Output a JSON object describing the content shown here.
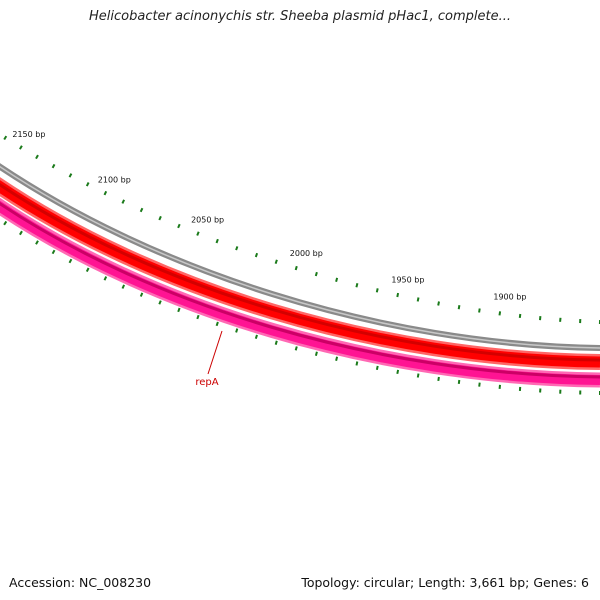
{
  "title": "Helicobacter acinonychis str. Sheeba plasmid pHac1, complete...",
  "footer": {
    "accession": "Accession: NC_008230",
    "summary": "Topology: circular; Length: 3,661 bp; Genes: 6"
  },
  "map": {
    "view_range_bp": [
      1855,
      2175
    ],
    "tick_labels": [
      {
        "bp": 2150,
        "label": "2150 bp"
      },
      {
        "bp": 2100,
        "label": "2100 bp"
      },
      {
        "bp": 2050,
        "label": "2050 bp"
      },
      {
        "bp": 2000,
        "label": "2000 bp"
      },
      {
        "bp": 1950,
        "label": "1950 bp"
      },
      {
        "bp": 1900,
        "label": "1900 bp"
      }
    ],
    "genes": [
      {
        "name": "repA",
        "color": "#cc0000"
      }
    ],
    "colors": {
      "backbone": "#808080",
      "feature_red": "#ff0000",
      "feature_pink": "#ff1493",
      "ticks": "#1a7a1a",
      "label": "#cc0000"
    }
  }
}
